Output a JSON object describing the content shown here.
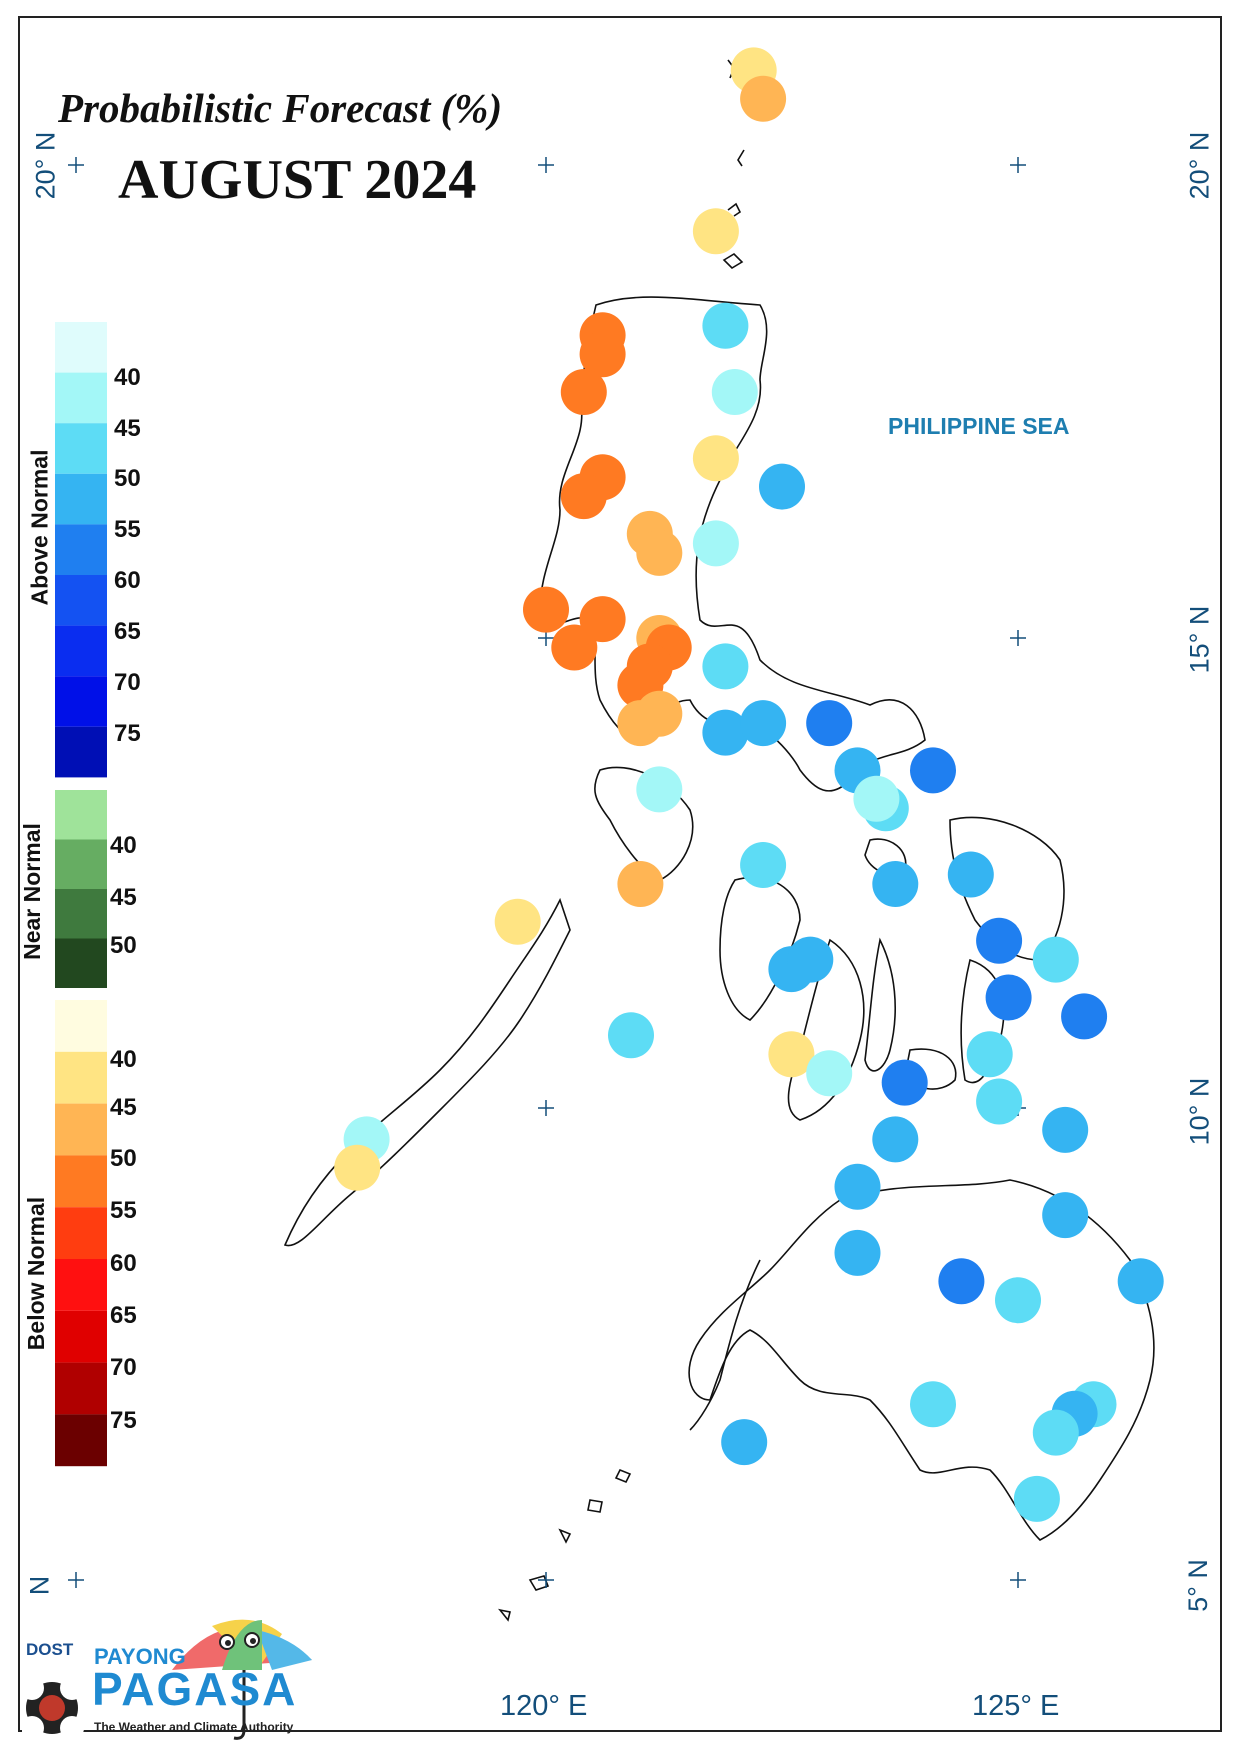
{
  "title": "Probabilistic Forecast (%)",
  "subtitle": "AUGUST 2024",
  "sea_label": "PHILIPPINE SEA",
  "lat_labels_left": [
    "20° N",
    "N"
  ],
  "lat_labels_right": [
    "20° N",
    "15° N",
    "10° N",
    "5° N"
  ],
  "lon_labels": [
    "120° E",
    "125° E"
  ],
  "legend": {
    "above_label": "Above Normal",
    "above_ticks": [
      "40",
      "45",
      "50",
      "55",
      "60",
      "65",
      "70",
      "75"
    ],
    "above_colors": [
      "#dffcfc",
      "#a3f7f7",
      "#5ddcf5",
      "#35b4f2",
      "#1f7ff0",
      "#1452f2",
      "#0a2df0",
      "#0010e8",
      "#000fb5"
    ],
    "near_label": "Near Normal",
    "near_ticks": [
      "40",
      "45",
      "50"
    ],
    "near_colors": [
      "#9fe39a",
      "#66ad62",
      "#3f7a3e",
      "#22481f"
    ],
    "below_label": "Below Normal",
    "below_ticks": [
      "40",
      "45",
      "50",
      "55",
      "60",
      "65",
      "70",
      "75"
    ],
    "below_colors": [
      "#fffce0",
      "#ffe483",
      "#ffb554",
      "#ff7a22",
      "#ff3d10",
      "#ff1010",
      "#e00000",
      "#b00000",
      "#6b0000"
    ]
  },
  "stations": [
    {
      "lon": 122.2,
      "lat": 21.0,
      "cat": "below",
      "prob": 40
    },
    {
      "lon": 122.3,
      "lat": 20.7,
      "cat": "below",
      "prob": 45
    },
    {
      "lon": 121.8,
      "lat": 19.3,
      "cat": "below",
      "prob": 40
    },
    {
      "lon": 121.9,
      "lat": 18.3,
      "cat": "above",
      "prob": 45
    },
    {
      "lon": 120.6,
      "lat": 18.2,
      "cat": "below",
      "prob": 50
    },
    {
      "lon": 120.6,
      "lat": 18.0,
      "cat": "below",
      "prob": 50
    },
    {
      "lon": 120.4,
      "lat": 17.6,
      "cat": "below",
      "prob": 50
    },
    {
      "lon": 122.0,
      "lat": 17.6,
      "cat": "above",
      "prob": 40
    },
    {
      "lon": 121.8,
      "lat": 16.9,
      "cat": "below",
      "prob": 40
    },
    {
      "lon": 120.6,
      "lat": 16.7,
      "cat": "below",
      "prob": 50
    },
    {
      "lon": 120.4,
      "lat": 16.5,
      "cat": "below",
      "prob": 50
    },
    {
      "lon": 122.5,
      "lat": 16.6,
      "cat": "above",
      "prob": 50
    },
    {
      "lon": 121.1,
      "lat": 16.1,
      "cat": "below",
      "prob": 45
    },
    {
      "lon": 121.2,
      "lat": 15.9,
      "cat": "below",
      "prob": 45
    },
    {
      "lon": 121.8,
      "lat": 16.0,
      "cat": "above",
      "prob": 40
    },
    {
      "lon": 120.0,
      "lat": 15.3,
      "cat": "below",
      "prob": 50
    },
    {
      "lon": 120.6,
      "lat": 15.2,
      "cat": "below",
      "prob": 50
    },
    {
      "lon": 120.3,
      "lat": 14.9,
      "cat": "below",
      "prob": 50
    },
    {
      "lon": 121.2,
      "lat": 15.0,
      "cat": "below",
      "prob": 45
    },
    {
      "lon": 121.3,
      "lat": 14.9,
      "cat": "below",
      "prob": 50
    },
    {
      "lon": 121.1,
      "lat": 14.7,
      "cat": "below",
      "prob": 50
    },
    {
      "lon": 121.0,
      "lat": 14.5,
      "cat": "below",
      "prob": 50
    },
    {
      "lon": 121.9,
      "lat": 14.7,
      "cat": "above",
      "prob": 45
    },
    {
      "lon": 121.0,
      "lat": 14.1,
      "cat": "below",
      "prob": 45
    },
    {
      "lon": 121.2,
      "lat": 14.2,
      "cat": "below",
      "prob": 45
    },
    {
      "lon": 121.9,
      "lat": 14.0,
      "cat": "above",
      "prob": 50
    },
    {
      "lon": 122.3,
      "lat": 14.1,
      "cat": "above",
      "prob": 50
    },
    {
      "lon": 123.0,
      "lat": 14.1,
      "cat": "above",
      "prob": 55
    },
    {
      "lon": 121.2,
      "lat": 13.4,
      "cat": "above",
      "prob": 40
    },
    {
      "lon": 123.3,
      "lat": 13.6,
      "cat": "above",
      "prob": 50
    },
    {
      "lon": 124.1,
      "lat": 13.6,
      "cat": "above",
      "prob": 55
    },
    {
      "lon": 123.6,
      "lat": 13.2,
      "cat": "above",
      "prob": 45
    },
    {
      "lon": 123.5,
      "lat": 13.3,
      "cat": "above",
      "prob": 40
    },
    {
      "lon": 122.3,
      "lat": 12.6,
      "cat": "above",
      "prob": 45
    },
    {
      "lon": 121.0,
      "lat": 12.4,
      "cat": "below",
      "prob": 45
    },
    {
      "lon": 123.7,
      "lat": 12.4,
      "cat": "above",
      "prob": 50
    },
    {
      "lon": 124.5,
      "lat": 12.5,
      "cat": "above",
      "prob": 50
    },
    {
      "lon": 119.7,
      "lat": 12.0,
      "cat": "below",
      "prob": 40
    },
    {
      "lon": 124.8,
      "lat": 11.8,
      "cat": "above",
      "prob": 55
    },
    {
      "lon": 125.4,
      "lat": 11.6,
      "cat": "above",
      "prob": 45
    },
    {
      "lon": 122.6,
      "lat": 11.5,
      "cat": "above",
      "prob": 50
    },
    {
      "lon": 122.8,
      "lat": 11.6,
      "cat": "above",
      "prob": 50
    },
    {
      "lon": 124.9,
      "lat": 11.2,
      "cat": "above",
      "prob": 55
    },
    {
      "lon": 125.7,
      "lat": 11.0,
      "cat": "above",
      "prob": 55
    },
    {
      "lon": 120.9,
      "lat": 10.8,
      "cat": "above",
      "prob": 45
    },
    {
      "lon": 122.6,
      "lat": 10.6,
      "cat": "below",
      "prob": 40
    },
    {
      "lon": 124.7,
      "lat": 10.6,
      "cat": "above",
      "prob": 45
    },
    {
      "lon": 123.0,
      "lat": 10.4,
      "cat": "above",
      "prob": 40
    },
    {
      "lon": 123.8,
      "lat": 10.3,
      "cat": "above",
      "prob": 55
    },
    {
      "lon": 124.8,
      "lat": 10.1,
      "cat": "above",
      "prob": 45
    },
    {
      "lon": 118.1,
      "lat": 9.7,
      "cat": "above",
      "prob": 40
    },
    {
      "lon": 118.0,
      "lat": 9.4,
      "cat": "below",
      "prob": 40
    },
    {
      "lon": 125.5,
      "lat": 9.8,
      "cat": "above",
      "prob": 50
    },
    {
      "lon": 123.7,
      "lat": 9.7,
      "cat": "above",
      "prob": 50
    },
    {
      "lon": 123.3,
      "lat": 9.2,
      "cat": "above",
      "prob": 50
    },
    {
      "lon": 125.5,
      "lat": 8.9,
      "cat": "above",
      "prob": 50
    },
    {
      "lon": 123.3,
      "lat": 8.5,
      "cat": "above",
      "prob": 50
    },
    {
      "lon": 124.4,
      "lat": 8.2,
      "cat": "above",
      "prob": 55
    },
    {
      "lon": 125.0,
      "lat": 8.0,
      "cat": "above",
      "prob": 45
    },
    {
      "lon": 126.3,
      "lat": 8.2,
      "cat": "above",
      "prob": 50
    },
    {
      "lon": 124.1,
      "lat": 6.9,
      "cat": "above",
      "prob": 45
    },
    {
      "lon": 125.8,
      "lat": 6.9,
      "cat": "above",
      "prob": 45
    },
    {
      "lon": 125.6,
      "lat": 6.8,
      "cat": "above",
      "prob": 50
    },
    {
      "lon": 125.4,
      "lat": 6.6,
      "cat": "above",
      "prob": 45
    },
    {
      "lon": 122.1,
      "lat": 6.5,
      "cat": "above",
      "prob": 50
    },
    {
      "lon": 125.2,
      "lat": 5.9,
      "cat": "above",
      "prob": 45
    }
  ]
}
